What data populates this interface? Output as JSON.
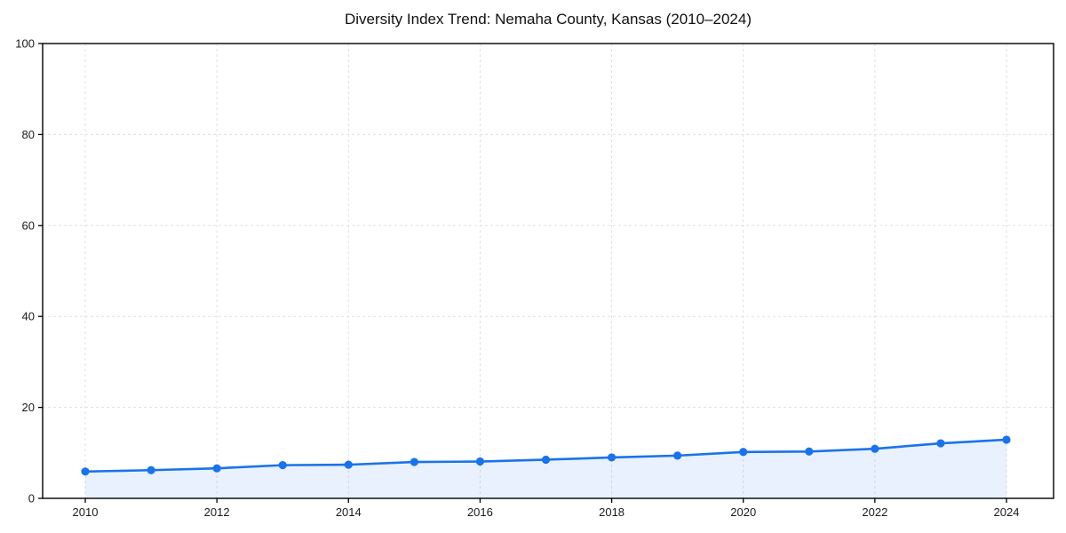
{
  "figure": {
    "background": "#ffffff"
  },
  "chart_data": {
    "type": "area",
    "title": "Diversity Index Trend: Nemaha County, Kansas (2010–2024)",
    "series_name": "Diversity Index",
    "x": [
      2010,
      2011,
      2012,
      2013,
      2014,
      2015,
      2016,
      2017,
      2018,
      2019,
      2020,
      2021,
      2022,
      2023,
      2024
    ],
    "values": [
      5.9,
      6.2,
      6.6,
      7.3,
      7.4,
      8.0,
      8.1,
      8.5,
      9.0,
      9.4,
      10.2,
      10.3,
      10.9,
      12.1,
      12.9
    ],
    "xlabel": "",
    "ylabel": "",
    "xlim": [
      2009.3,
      2024.72
    ],
    "ylim": [
      0,
      100
    ],
    "xticks": [
      2010,
      2012,
      2014,
      2016,
      2018,
      2020,
      2022,
      2024
    ],
    "yticks": [
      0,
      20,
      40,
      60,
      80,
      100
    ],
    "grid": true,
    "grid_style": "dashed",
    "legend": "none",
    "colors": {
      "line": "#1a73e8",
      "marker": "#1a73e8",
      "fill": "rgba(26,115,232,0.10)",
      "grid": "#e0e0e0",
      "axis": "#000000",
      "tick_text": "#1a1a1a",
      "title_text": "#111111",
      "background": "#ffffff"
    }
  }
}
